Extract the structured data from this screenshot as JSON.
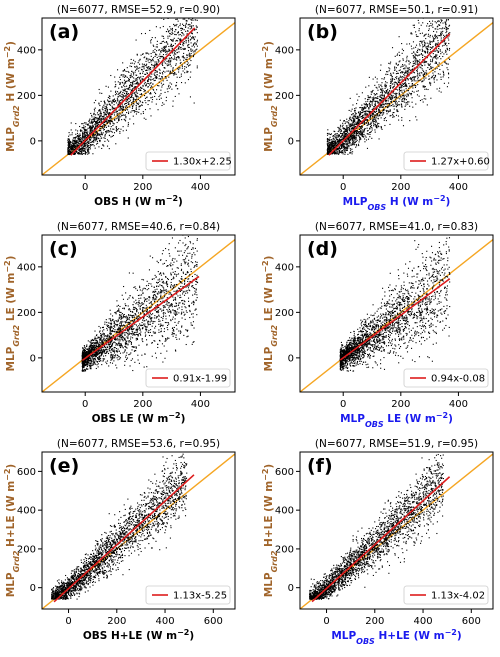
{
  "chart_data": [
    {
      "id": "a",
      "type": "scatter",
      "panel_label": "(a)",
      "stats": "(N=6077, RMSE=52.9, r=0.90)",
      "xlabel": [
        {
          "text": "OBS H (W m",
          "color": "#000000"
        },
        {
          "text": "−2",
          "sup": true,
          "color": "#000000"
        },
        {
          "text": ")",
          "color": "#000000"
        }
      ],
      "ylabel": [
        {
          "text": "MLP",
          "color": "#a0642a"
        },
        {
          "text": "Grd2",
          "sub": true,
          "italic": true,
          "color": "#a0642a"
        },
        {
          "text": " H (W m",
          "color": "#a0642a"
        },
        {
          "text": "−2",
          "sup": true,
          "color": "#a0642a"
        },
        {
          "text": ")",
          "color": "#a0642a"
        }
      ],
      "xlim": [
        -150,
        520
      ],
      "ylim": [
        -150,
        540
      ],
      "xticks": [
        0,
        200,
        400
      ],
      "yticks": [
        0,
        200,
        400
      ],
      "xticklabels": [
        "0",
        "200",
        "400"
      ],
      "yticklabels": [
        "0",
        "200",
        "400"
      ],
      "fit": {
        "slope": 1.3,
        "intercept": 2.25,
        "x_range": [
          -50,
          380
        ],
        "label": "1.30x+2.25",
        "color": "#dd1c1c"
      },
      "one_to_one": {
        "color": "#f5a623"
      },
      "cloud": {
        "x_min": -60,
        "x_max": 390,
        "slope": 1.3,
        "intercept": 2.25,
        "spread": 40,
        "spread_growth": 0.18,
        "count": 2500
      }
    },
    {
      "id": "b",
      "type": "scatter",
      "panel_label": "(b)",
      "stats": "(N=6077, RMSE=50.1, r=0.91)",
      "xlabel": [
        {
          "text": "MLP",
          "color": "#1a1aee"
        },
        {
          "text": "OBS",
          "sub": true,
          "italic": true,
          "color": "#1a1aee"
        },
        {
          "text": " H (W m",
          "color": "#1a1aee"
        },
        {
          "text": "−2",
          "sup": true,
          "color": "#1a1aee"
        },
        {
          "text": ")",
          "color": "#1a1aee"
        }
      ],
      "ylabel": [
        {
          "text": "MLP",
          "color": "#a0642a"
        },
        {
          "text": "Grd2",
          "sub": true,
          "italic": true,
          "color": "#a0642a"
        },
        {
          "text": " H (W m",
          "color": "#a0642a"
        },
        {
          "text": "−2",
          "sup": true,
          "color": "#a0642a"
        },
        {
          "text": ")",
          "color": "#a0642a"
        }
      ],
      "xlim": [
        -150,
        520
      ],
      "ylim": [
        -150,
        540
      ],
      "xticks": [
        0,
        200,
        400
      ],
      "yticks": [
        0,
        200,
        400
      ],
      "xticklabels": [
        "0",
        "200",
        "400"
      ],
      "yticklabels": [
        "0",
        "200",
        "400"
      ],
      "fit": {
        "slope": 1.27,
        "intercept": 0.6,
        "x_range": [
          -50,
          370
        ],
        "label": "1.27x+0.60",
        "color": "#dd1c1c"
      },
      "one_to_one": {
        "color": "#f5a623"
      },
      "cloud": {
        "x_min": -55,
        "x_max": 370,
        "slope": 1.27,
        "intercept": 0.6,
        "spread": 38,
        "spread_growth": 0.17,
        "count": 2500
      }
    },
    {
      "id": "c",
      "type": "scatter",
      "panel_label": "(c)",
      "stats": "(N=6077, RMSE=40.6, r=0.84)",
      "xlabel": [
        {
          "text": "OBS LE (W m",
          "color": "#000000"
        },
        {
          "text": "−2",
          "sup": true,
          "color": "#000000"
        },
        {
          "text": ")",
          "color": "#000000"
        }
      ],
      "ylabel": [
        {
          "text": "MLP",
          "color": "#a0642a"
        },
        {
          "text": "Grd2",
          "sub": true,
          "italic": true,
          "color": "#a0642a"
        },
        {
          "text": " LE (W m",
          "color": "#a0642a"
        },
        {
          "text": "−2",
          "sup": true,
          "color": "#a0642a"
        },
        {
          "text": ")",
          "color": "#a0642a"
        }
      ],
      "xlim": [
        -150,
        520
      ],
      "ylim": [
        -150,
        540
      ],
      "xticks": [
        0,
        200,
        400
      ],
      "yticks": [
        0,
        200,
        400
      ],
      "xticklabels": [
        "0",
        "200",
        "400"
      ],
      "yticklabels": [
        "0",
        "200",
        "400"
      ],
      "fit": {
        "slope": 0.91,
        "intercept": -1.99,
        "x_range": [
          -10,
          395
        ],
        "label": "0.91x-1.99",
        "color": "#dd1c1c"
      },
      "one_to_one": {
        "color": "#f5a623"
      },
      "cloud": {
        "x_min": -10,
        "x_max": 390,
        "slope": 0.91,
        "intercept": -1.99,
        "spread": 22,
        "spread_growth": 0.3,
        "count": 2200
      }
    },
    {
      "id": "d",
      "type": "scatter",
      "panel_label": "(d)",
      "stats": "(N=6077, RMSE=41.0, r=0.83)",
      "xlabel": [
        {
          "text": "MLP",
          "color": "#1a1aee"
        },
        {
          "text": "OBS",
          "sub": true,
          "italic": true,
          "color": "#1a1aee"
        },
        {
          "text": " LE (W m",
          "color": "#1a1aee"
        },
        {
          "text": "−2",
          "sup": true,
          "color": "#1a1aee"
        },
        {
          "text": ")",
          "color": "#1a1aee"
        }
      ],
      "ylabel": [
        {
          "text": "MLP",
          "color": "#a0642a"
        },
        {
          "text": "Grd2",
          "sub": true,
          "italic": true,
          "color": "#a0642a"
        },
        {
          "text": " LE (W m",
          "color": "#a0642a"
        },
        {
          "text": "−2",
          "sup": true,
          "color": "#a0642a"
        },
        {
          "text": ")",
          "color": "#a0642a"
        }
      ],
      "xlim": [
        -150,
        520
      ],
      "ylim": [
        -150,
        540
      ],
      "xticks": [
        0,
        200,
        400
      ],
      "yticks": [
        0,
        200,
        400
      ],
      "xticklabels": [
        "0",
        "200",
        "400"
      ],
      "yticklabels": [
        "0",
        "200",
        "400"
      ],
      "fit": {
        "slope": 0.94,
        "intercept": -0.08,
        "x_range": [
          -10,
          370
        ],
        "label": "0.94x-0.08",
        "color": "#dd1c1c"
      },
      "one_to_one": {
        "color": "#f5a623"
      },
      "cloud": {
        "x_min": -10,
        "x_max": 370,
        "slope": 0.94,
        "intercept": -0.08,
        "spread": 22,
        "spread_growth": 0.3,
        "count": 2200
      }
    },
    {
      "id": "e",
      "type": "scatter",
      "panel_label": "(e)",
      "stats": "(N=6077, RMSE=53.6, r=0.95)",
      "xlabel": [
        {
          "text": "OBS H+LE (W m",
          "color": "#000000"
        },
        {
          "text": "−2",
          "sup": true,
          "color": "#000000"
        },
        {
          "text": ")",
          "color": "#000000"
        }
      ],
      "ylabel": [
        {
          "text": "MLP",
          "color": "#a0642a"
        },
        {
          "text": "Grd2",
          "sub": true,
          "italic": true,
          "color": "#a0642a"
        },
        {
          "text": " H+LE (W m",
          "color": "#a0642a"
        },
        {
          "text": "−2",
          "sup": true,
          "color": "#a0642a"
        },
        {
          "text": ")",
          "color": "#a0642a"
        }
      ],
      "xlim": [
        -110,
        690
      ],
      "ylim": [
        -110,
        700
      ],
      "xticks": [
        0,
        200,
        400,
        600
      ],
      "yticks": [
        0,
        200,
        400,
        600
      ],
      "xticklabels": [
        "0",
        "200",
        "400",
        "600"
      ],
      "yticklabels": [
        "0",
        "200",
        "400",
        "600"
      ],
      "fit": {
        "slope": 1.13,
        "intercept": -5.25,
        "x_range": [
          -60,
          520
        ],
        "label": "1.13x-5.25",
        "color": "#dd1c1c"
      },
      "one_to_one": {
        "color": "#f5a623"
      },
      "cloud": {
        "x_min": -70,
        "x_max": 490,
        "slope": 1.13,
        "intercept": -5.25,
        "spread": 30,
        "spread_growth": 0.12,
        "count": 2800
      }
    },
    {
      "id": "f",
      "type": "scatter",
      "panel_label": "(f)",
      "stats": "(N=6077, RMSE=51.9, r=0.95)",
      "xlabel": [
        {
          "text": "MLP",
          "color": "#1a1aee"
        },
        {
          "text": "OBS",
          "sub": true,
          "italic": true,
          "color": "#1a1aee"
        },
        {
          "text": " H+LE (W m",
          "color": "#1a1aee"
        },
        {
          "text": "−2",
          "sup": true,
          "color": "#1a1aee"
        },
        {
          "text": ")",
          "color": "#1a1aee"
        }
      ],
      "ylabel": [
        {
          "text": "MLP",
          "color": "#a0642a"
        },
        {
          "text": "Grd2",
          "sub": true,
          "italic": true,
          "color": "#a0642a"
        },
        {
          "text": " H+LE (W m",
          "color": "#a0642a"
        },
        {
          "text": "−2",
          "sup": true,
          "color": "#a0642a"
        },
        {
          "text": ")",
          "color": "#a0642a"
        }
      ],
      "xlim": [
        -110,
        690
      ],
      "ylim": [
        -110,
        700
      ],
      "xticks": [
        0,
        200,
        400,
        600
      ],
      "yticks": [
        0,
        200,
        400,
        600
      ],
      "xticklabels": [
        "0",
        "200",
        "400",
        "600"
      ],
      "yticklabels": [
        "0",
        "200",
        "400",
        "600"
      ],
      "fit": {
        "slope": 1.13,
        "intercept": -4.02,
        "x_range": [
          -60,
          510
        ],
        "label": "1.13x-4.02",
        "color": "#dd1c1c"
      },
      "one_to_one": {
        "color": "#f5a623"
      },
      "cloud": {
        "x_min": -70,
        "x_max": 485,
        "slope": 1.13,
        "intercept": -4.02,
        "spread": 30,
        "spread_growth": 0.12,
        "count": 2800
      }
    }
  ]
}
